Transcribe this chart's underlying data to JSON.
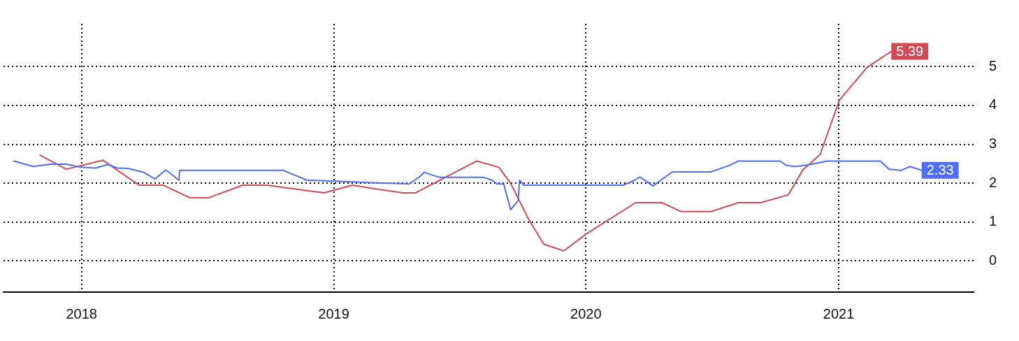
{
  "chart_data": {
    "type": "line",
    "grid": true,
    "marker": "none",
    "line_style": "solid",
    "xlim": [
      "2017-09-10",
      "2021-07-15"
    ],
    "xticks": [
      {
        "value": "2018-01-01",
        "label": "2018"
      },
      {
        "value": "2019-01-01",
        "label": "2019"
      },
      {
        "value": "2020-01-01",
        "label": "2020"
      },
      {
        "value": "2021-01-01",
        "label": "2021"
      }
    ],
    "ylim": [
      -0.8,
      6.1
    ],
    "yticks": [
      0,
      1,
      2,
      3,
      4,
      5
    ],
    "series": [
      {
        "color": "#4d6ef5",
        "x": [
          "2017-09-25",
          "2017-10-23",
          "2017-11-17",
          "2017-12-10",
          "2017-12-31",
          "2018-01-21",
          "2018-02-08",
          "2018-02-22",
          "2018-03-09",
          "2018-04-01",
          "2018-04-17",
          "2018-05-03",
          "2018-05-22",
          "2018-05-23",
          "2018-10-20",
          "2018-11-23",
          "2019-02-28",
          "2019-04-20",
          "2019-05-05",
          "2019-05-12",
          "2019-06-03",
          "2019-08-06",
          "2019-08-18",
          "2019-08-25",
          "2019-09-04",
          "2019-09-14",
          "2019-09-25",
          "2019-09-27",
          "2019-10-03",
          "2020-02-24",
          "2020-03-12",
          "2020-03-19",
          "2020-04-07",
          "2020-05-05",
          "2020-06-30",
          "2020-07-27",
          "2020-08-09",
          "2020-10-08",
          "2020-10-17",
          "2020-10-29",
          "2020-11-15",
          "2020-12-15",
          "2021-01-26",
          "2021-03-02",
          "2021-03-15",
          "2021-04-01",
          "2021-04-14",
          "2021-05-01"
        ],
        "values": [
          2.57,
          2.43,
          2.49,
          2.49,
          2.41,
          2.39,
          2.48,
          2.39,
          2.38,
          2.28,
          2.11,
          2.34,
          2.08,
          2.33,
          2.33,
          2.08,
          2.01,
          1.98,
          2.16,
          2.28,
          2.15,
          2.15,
          2.08,
          1.98,
          1.98,
          1.32,
          1.55,
          2.08,
          1.95,
          1.95,
          2.08,
          2.16,
          1.93,
          2.29,
          2.29,
          2.46,
          2.57,
          2.57,
          2.46,
          2.43,
          2.46,
          2.57,
          2.57,
          2.57,
          2.36,
          2.33,
          2.43,
          2.33
        ],
        "value_labels": [
          null,
          null,
          null,
          null,
          null,
          null,
          null,
          null,
          null,
          null,
          null,
          null,
          null,
          null,
          null,
          null,
          null,
          null,
          null,
          null,
          null,
          null,
          null,
          null,
          null,
          null,
          null,
          null,
          null,
          null,
          null,
          null,
          null,
          null,
          null,
          null,
          null,
          null,
          null,
          null,
          null,
          null,
          null,
          null,
          null,
          null,
          null,
          "2.33"
        ]
      },
      {
        "color": "#d14b56",
        "x": [
          "2017-11-02",
          "2017-12-10",
          "2018-02-01",
          "2018-03-25",
          "2018-04-29",
          "2018-06-06",
          "2018-07-03",
          "2018-08-22",
          "2018-09-26",
          "2018-12-18",
          "2019-01-28",
          "2019-02-28",
          "2019-04-11",
          "2019-04-29",
          "2019-07-27",
          "2019-08-28",
          "2019-09-14",
          "2019-10-09",
          "2019-11-01",
          "2019-11-30",
          "2020-01-01",
          "2020-03-13",
          "2020-04-20",
          "2020-05-18",
          "2020-06-30",
          "2020-08-09",
          "2020-09-10",
          "2020-10-20",
          "2020-11-10",
          "2020-12-05",
          "2021-01-02",
          "2021-02-11",
          "2021-03-18"
        ],
        "values": [
          2.72,
          2.36,
          2.59,
          1.95,
          1.95,
          1.63,
          1.62,
          1.95,
          1.95,
          1.75,
          1.95,
          1.86,
          1.75,
          1.75,
          2.57,
          2.41,
          2.0,
          1.11,
          0.43,
          0.26,
          0.69,
          1.5,
          1.5,
          1.27,
          1.27,
          1.5,
          1.5,
          1.7,
          2.34,
          2.74,
          4.14,
          4.98,
          5.39
        ],
        "value_labels": [
          null,
          null,
          null,
          null,
          null,
          null,
          null,
          null,
          null,
          null,
          null,
          null,
          null,
          null,
          null,
          null,
          null,
          null,
          null,
          null,
          null,
          null,
          null,
          null,
          null,
          null,
          null,
          null,
          null,
          null,
          null,
          null,
          "5.39"
        ]
      }
    ]
  }
}
